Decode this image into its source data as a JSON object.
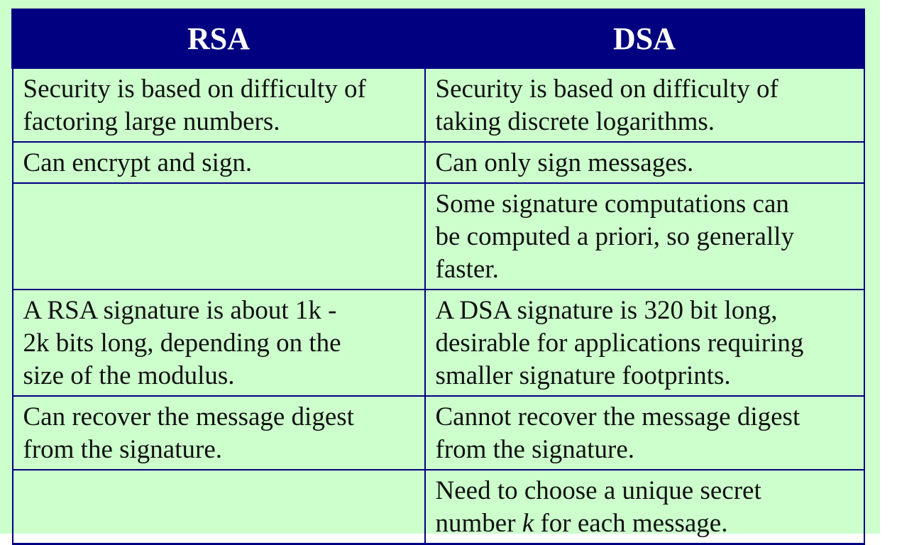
{
  "table": {
    "headers": [
      "RSA",
      "DSA"
    ],
    "rows": [
      {
        "rsa": "Security is based on difficulty of\nfactoring large numbers.",
        "dsa": "Security is based on difficulty of\ntaking discrete logarithms."
      },
      {
        "rsa": "Can encrypt and sign.",
        "dsa": "Can only sign messages."
      },
      {
        "rsa": "",
        "dsa": "Some signature computations can\nbe computed a priori, so generally\nfaster."
      },
      {
        "rsa": "A RSA signature is about 1k -\n2k bits long, depending on the\nsize of the modulus.",
        "dsa": "A DSA signature is 320 bit long,\ndesirable for applications requiring\nsmaller signature footprints."
      },
      {
        "rsa": "Can recover the message digest\nfrom the signature.",
        "dsa": "Cannot recover the message digest\nfrom the signature."
      },
      {
        "rsa": "",
        "dsa_parts": [
          "Need to choose a unique secret\nnumber ",
          "k",
          " for each message."
        ]
      }
    ]
  },
  "colors": {
    "header_background": "#000080",
    "header_text": "#ffffff",
    "panel_background": "#ccffcc",
    "border": "#000080"
  }
}
